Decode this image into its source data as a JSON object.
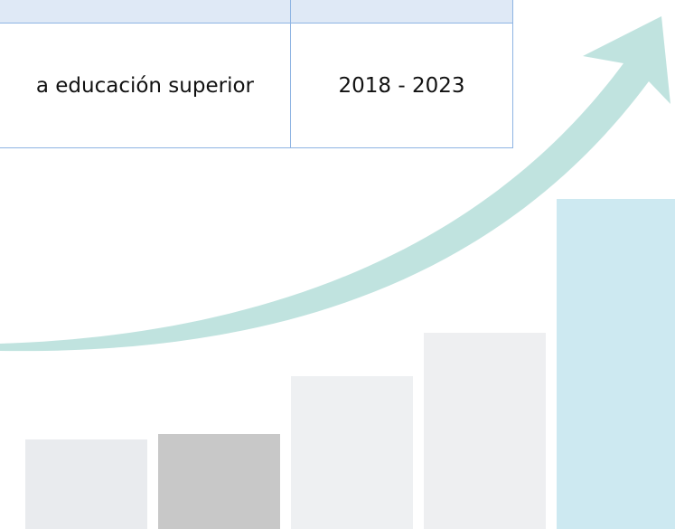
{
  "table": {
    "rows": [
      [
        "a educación superior",
        "2018 - 2023"
      ]
    ]
  }
}
